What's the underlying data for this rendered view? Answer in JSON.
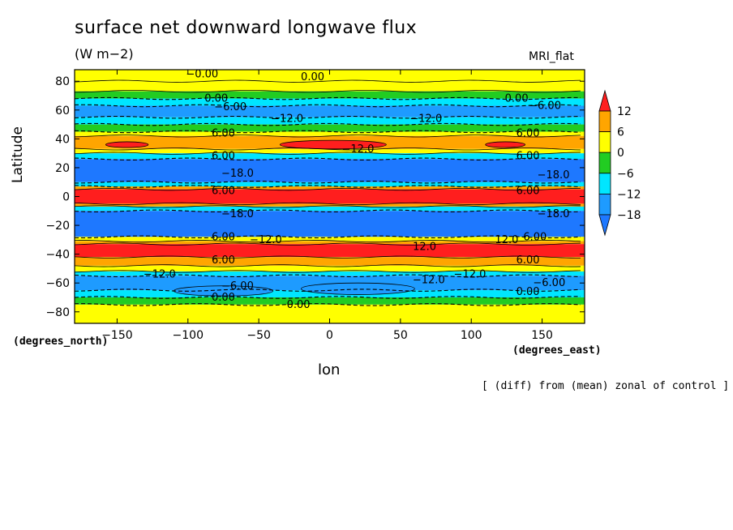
{
  "chart_data": {
    "type": "heatmap",
    "title": "surface net downward longwave flux",
    "units": "(W m−2)",
    "model": "MRI_flat",
    "note": "[ (diff) from (mean) zonal of control ]",
    "xlabel": "lon",
    "ylabel": "Latitude",
    "x_units": "(degrees_east)",
    "y_units": "(degrees_north)",
    "xlim": [
      -180,
      180
    ],
    "ylim": [
      -88,
      88
    ],
    "x_ticks": [
      -150,
      -100,
      -50,
      0,
      50,
      100,
      150
    ],
    "x_tick_labels": [
      "−150",
      "−100",
      "−50",
      "0",
      "50",
      "100",
      "150"
    ],
    "y_ticks": [
      80,
      60,
      40,
      20,
      0,
      -20,
      -40,
      -60,
      -80
    ],
    "y_tick_labels": [
      "80",
      "60",
      "40",
      "20",
      "0",
      "−20",
      "−40",
      "−60",
      "−80"
    ],
    "color_levels": [
      -18,
      -12,
      -6,
      0,
      6,
      12
    ],
    "colorbar_labels": [
      "12",
      "6",
      "0",
      "−6",
      "−12",
      "−18"
    ],
    "colors": {
      "below_-18": "#1e78ff",
      "-18_to_-12": "#1e9bff",
      "-12_to_-6": "#00e6ff",
      "-6_to_0": "#22cc22",
      "0_to_6": "#ffff00",
      "6_to_12": "#ffa500",
      "above_12": "#ff1e1e"
    },
    "zonal_bands": [
      {
        "lat": [
          80,
          88
        ],
        "value": 3
      },
      {
        "lat": [
          73,
          80
        ],
        "value": 1
      },
      {
        "lat": [
          68,
          73
        ],
        "value": -2
      },
      {
        "lat": [
          63,
          68
        ],
        "value": -8
      },
      {
        "lat": [
          55,
          63
        ],
        "value": -14
      },
      {
        "lat": [
          50,
          55
        ],
        "value": -8
      },
      {
        "lat": [
          45,
          50
        ],
        "value": -2
      },
      {
        "lat": [
          42,
          45
        ],
        "value": 3
      },
      {
        "lat": [
          33,
          42
        ],
        "value": 9
      },
      {
        "lat": [
          30,
          33
        ],
        "value": 2
      },
      {
        "lat": [
          26,
          30
        ],
        "value": -8
      },
      {
        "lat": [
          10,
          26
        ],
        "value": -19
      },
      {
        "lat": [
          7,
          10
        ],
        "value": -8
      },
      {
        "lat": [
          5,
          7
        ],
        "value": 7
      },
      {
        "lat": [
          -5,
          5
        ],
        "value": 14
      },
      {
        "lat": [
          -7,
          -5
        ],
        "value": 7
      },
      {
        "lat": [
          -10,
          -7
        ],
        "value": -8
      },
      {
        "lat": [
          -28,
          -10
        ],
        "value": -19
      },
      {
        "lat": [
          -31,
          -28
        ],
        "value": 2
      },
      {
        "lat": [
          -33,
          -31
        ],
        "value": 9
      },
      {
        "lat": [
          -42,
          -33
        ],
        "value": 14
      },
      {
        "lat": [
          -48,
          -42
        ],
        "value": 9
      },
      {
        "lat": [
          -52,
          -48
        ],
        "value": 2
      },
      {
        "lat": [
          -55,
          -52
        ],
        "value": -8
      },
      {
        "lat": [
          -65,
          -55
        ],
        "value": -14
      },
      {
        "lat": [
          -70,
          -65
        ],
        "value": -8
      },
      {
        "lat": [
          -75,
          -70
        ],
        "value": -2
      },
      {
        "lat": [
          -88,
          -75
        ],
        "value": 3
      }
    ],
    "anomaly_patches": [
      {
        "lon": [
          -158,
          -128
        ],
        "lat": [
          34,
          38
        ],
        "value": 14
      },
      {
        "lon": [
          -35,
          40
        ],
        "lat": [
          33,
          39
        ],
        "value": 14
      },
      {
        "lon": [
          110,
          138
        ],
        "lat": [
          34,
          38
        ],
        "value": 14
      },
      {
        "lon": [
          -20,
          60
        ],
        "lat": [
          -68,
          -60
        ],
        "value": -14
      },
      {
        "lon": [
          -110,
          -40
        ],
        "lat": [
          -69,
          -62
        ],
        "value": -14
      }
    ],
    "contour_labels": [
      {
        "text": "0.00",
        "lon": -80,
        "lat": 68
      },
      {
        "text": "0.00",
        "lon": -12,
        "lat": 83
      },
      {
        "text": "−0.00",
        "lon": -90,
        "lat": 85
      },
      {
        "text": "0.00",
        "lon": 132,
        "lat": 68
      },
      {
        "text": "−6.00",
        "lon": -70,
        "lat": 62
      },
      {
        "text": "−6.00",
        "lon": 152,
        "lat": 63
      },
      {
        "text": "−12.0",
        "lon": -30,
        "lat": 54
      },
      {
        "text": "−12.0",
        "lon": 68,
        "lat": 54
      },
      {
        "text": "6.00",
        "lon": -75,
        "lat": 44
      },
      {
        "text": "6.00",
        "lon": 140,
        "lat": 44
      },
      {
        "text": "−12.0",
        "lon": 20,
        "lat": 33
      },
      {
        "text": "6.00",
        "lon": -75,
        "lat": 28
      },
      {
        "text": "6.00",
        "lon": 140,
        "lat": 28
      },
      {
        "text": "−18.0",
        "lon": -65,
        "lat": 16
      },
      {
        "text": "−18.0",
        "lon": 158,
        "lat": 15
      },
      {
        "text": "6.00",
        "lon": -75,
        "lat": 4
      },
      {
        "text": "6.00",
        "lon": 140,
        "lat": 4
      },
      {
        "text": "−18.0",
        "lon": -65,
        "lat": -12
      },
      {
        "text": "−18.0",
        "lon": 158,
        "lat": -12
      },
      {
        "text": "6.00",
        "lon": -75,
        "lat": -28
      },
      {
        "text": "−12.0",
        "lon": -45,
        "lat": -30
      },
      {
        "text": "12.0",
        "lon": 125,
        "lat": -30
      },
      {
        "text": "6.00",
        "lon": 145,
        "lat": -28
      },
      {
        "text": "12.0",
        "lon": 67,
        "lat": -35
      },
      {
        "text": "6.00",
        "lon": -75,
        "lat": -44
      },
      {
        "text": "6.00",
        "lon": 140,
        "lat": -44
      },
      {
        "text": "−12.0",
        "lon": -120,
        "lat": -54
      },
      {
        "text": "−12.0",
        "lon": 70,
        "lat": -58
      },
      {
        "text": "−12.0",
        "lon": 99,
        "lat": -54
      },
      {
        "text": "−6.00",
        "lon": -65,
        "lat": -62
      },
      {
        "text": "−6.00",
        "lon": 155,
        "lat": -60
      },
      {
        "text": "0.00",
        "lon": -75,
        "lat": -70
      },
      {
        "text": "0.00",
        "lon": -22,
        "lat": -75
      },
      {
        "text": "0.00",
        "lon": 140,
        "lat": -66
      }
    ]
  }
}
